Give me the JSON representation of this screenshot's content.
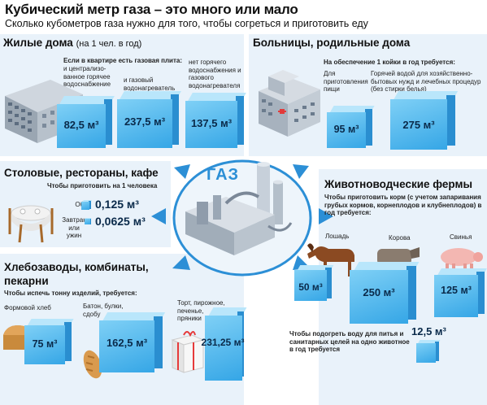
{
  "header": {
    "title": "Кубический метр газа – это много или мало",
    "subtitle": "Сколько кубометров газа нужно для того, чтобы согреться и приготовить еду"
  },
  "center": {
    "label": "ГАЗ"
  },
  "residential": {
    "title": "Жилые дома",
    "title_note": "(на 1 чел. в год)",
    "intro": "Если в квартире есть газовая плита:",
    "items": [
      {
        "label": "и централизо-ванное горячее водоснабжение",
        "value": "82,5 м³"
      },
      {
        "label": "и газовый водонагреватель",
        "value": "237,5 м³"
      },
      {
        "label": "нет горячего водоснабжения и газового водонагревателя",
        "value": "137,5 м³"
      }
    ]
  },
  "hospitals": {
    "title": "Больницы, родильные дома",
    "intro": "На обеспечение 1 койки в год требуется:",
    "items": [
      {
        "label": "Для приготовления пищи",
        "value": "95 м³"
      },
      {
        "label": "Горячей водой для хозяйственно-бытовых нужд и лечебных процедур (без стирки белья)",
        "value": "275 м³"
      }
    ]
  },
  "canteens": {
    "title": "Столовые, рестораны, кафе",
    "intro": "Чтобы приготовить на 1 человека",
    "items": [
      {
        "label": "Обед",
        "value": "0,125 м³"
      },
      {
        "label": "Завтрак или ужин",
        "value": "0,0625 м³"
      }
    ]
  },
  "farms": {
    "title": "Животноводческие фермы",
    "intro": "Чтобы приготовить корм (с учетом запаривания грубых кормов, корнеплодов и клубнеплодов) в год требуется:",
    "items": [
      {
        "label": "Лошадь",
        "value": "50 м³"
      },
      {
        "label": "Корова",
        "value": "250 м³"
      },
      {
        "label": "Свинья",
        "value": "125 м³"
      }
    ],
    "water_note": "Чтобы подогреть воду для питья и санитарных целей на одно животное в год требуется",
    "water_value": "12,5 м³"
  },
  "bakeries": {
    "title": "Хлебозаводы, комбинаты, пекарни",
    "intro": "Чтобы испечь тонну изделий, требуется:",
    "items": [
      {
        "label": "Формовой хлеб",
        "value": "75 м³"
      },
      {
        "label": "Батон, булки, сдобу",
        "value": "162,5 м³"
      },
      {
        "label": "Торт, пирожное, печенье, пряники",
        "value": "231,25 м³"
      }
    ]
  },
  "colors": {
    "accent": "#2c8fd6",
    "cube_front": "#4bb4ec",
    "cube_top": "#b9e6fb",
    "cube_side": "#2a8ed0",
    "panel": "#e9f2fa"
  }
}
